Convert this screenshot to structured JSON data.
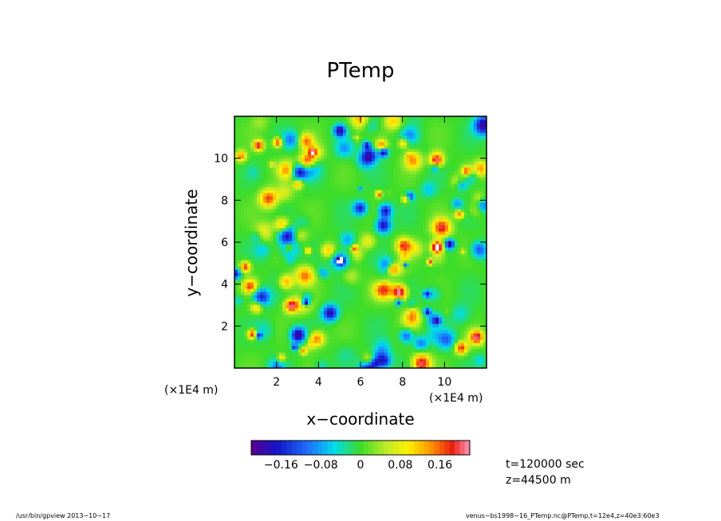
{
  "chart_data": {
    "type": "heatmap",
    "title": "PTemp",
    "xlabel": "x−coordinate",
    "ylabel": "y−coordinate",
    "x_unit": "(×1E4 m)",
    "y_unit": "(×1E4 m)",
    "xlim": [
      0,
      12
    ],
    "ylim": [
      0,
      12
    ],
    "x_ticks": [
      2,
      4,
      6,
      8,
      10
    ],
    "y_ticks": [
      2,
      4,
      6,
      8,
      10
    ],
    "x_tick_labels": [
      "2",
      "4",
      "6",
      "8",
      "10"
    ],
    "y_tick_labels": [
      "2",
      "4",
      "6",
      "8",
      "10"
    ],
    "colorbar": {
      "range": [
        -0.22,
        0.22
      ],
      "levels": 43,
      "tick_values": [
        -0.16,
        -0.08,
        0,
        0.08,
        0.16
      ],
      "tick_labels": [
        "−0.16",
        "−0.08",
        "0",
        "0.08",
        "0.16"
      ]
    },
    "field_description": "random small-scale perturbation field, mostly near 0 (green) with scattered positive (red) and negative (blue) cells"
  },
  "annotations": {
    "time": "t=120000 sec",
    "z": "z=44500 m"
  },
  "footer": {
    "program": "/usr/bin/gpview   2013−10−17",
    "source": "venus−bs1998−16_PTemp.nc@PTemp,t=12e4,z=40e3:60e3"
  }
}
